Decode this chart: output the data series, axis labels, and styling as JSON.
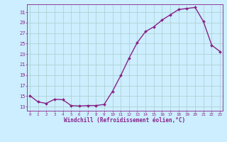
{
  "x": [
    0,
    1,
    2,
    3,
    4,
    5,
    6,
    7,
    8,
    9,
    10,
    11,
    12,
    13,
    14,
    15,
    16,
    17,
    18,
    19,
    20,
    21,
    22,
    23
  ],
  "y": [
    15.1,
    13.9,
    13.6,
    14.4,
    14.3,
    13.2,
    13.1,
    13.2,
    13.2,
    13.4,
    15.9,
    18.9,
    22.2,
    25.2,
    27.3,
    28.2,
    29.5,
    30.5,
    31.5,
    31.7,
    31.9,
    29.2,
    24.7,
    23.5
  ],
  "xlabel": "Windchill (Refroidissement éolien,°C)",
  "bg_color": "#cceeff",
  "grid_color": "#aacccc",
  "line_color": "#882288",
  "marker_color": "#882288",
  "yticks": [
    13,
    15,
    17,
    19,
    21,
    23,
    25,
    27,
    29,
    31
  ],
  "xticks": [
    0,
    1,
    2,
    3,
    4,
    5,
    6,
    7,
    8,
    9,
    10,
    11,
    12,
    13,
    14,
    15,
    16,
    17,
    18,
    19,
    20,
    21,
    22,
    23
  ],
  "ylim": [
    12.2,
    32.5
  ],
  "xlim": [
    -0.3,
    23.3
  ]
}
